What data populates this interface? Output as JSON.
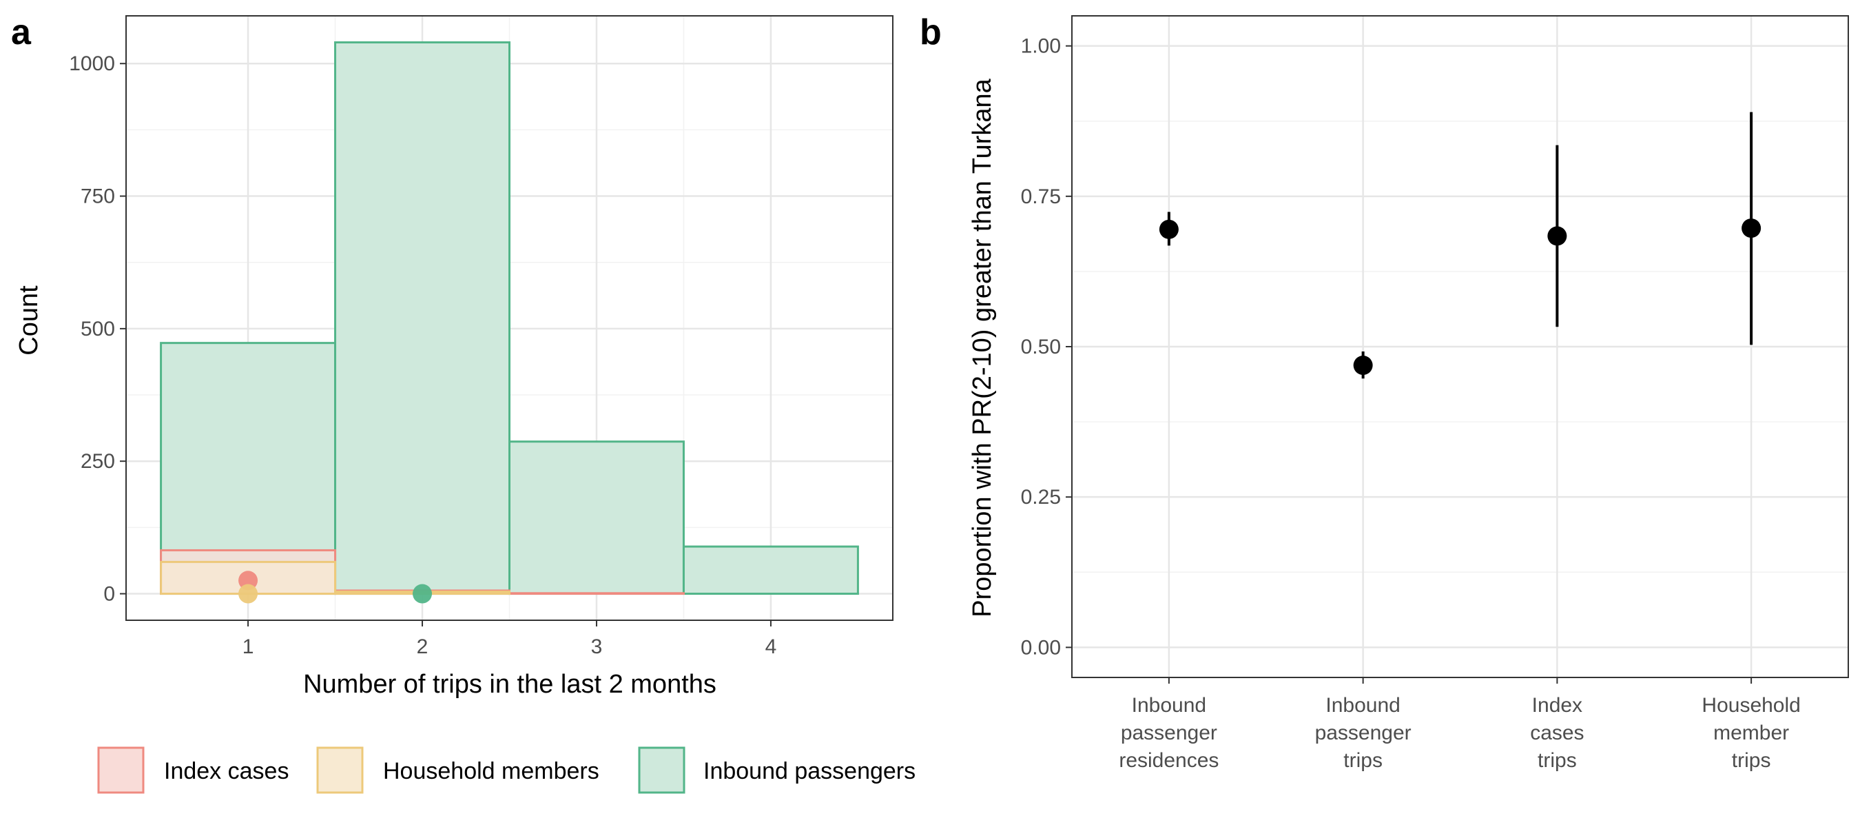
{
  "chart_data": [
    {
      "panel": "a",
      "type": "bar",
      "xlabel": "Number of trips in the last 2 months",
      "ylabel": "Count",
      "x_ticks": [
        1,
        2,
        3,
        4
      ],
      "y_ticks": [
        0,
        250,
        500,
        750,
        1000
      ],
      "xlim": [
        0.3,
        4.7
      ],
      "ylim": [
        -50,
        1090
      ],
      "grid": true,
      "legend_position": "bottom",
      "series": [
        {
          "name": "Index cases",
          "color": "#ef8a80",
          "fill": "#f9dcd8",
          "values": [
            {
              "x": 1,
              "y": 82
            },
            {
              "x": 2,
              "y": 6
            },
            {
              "x": 3,
              "y": 1
            },
            {
              "x": 4,
              "y": 0
            }
          ],
          "point": {
            "x": 1,
            "y": 25
          }
        },
        {
          "name": "Household members",
          "color": "#edc97a",
          "fill": "#f8ead2",
          "values": [
            {
              "x": 1,
              "y": 60
            },
            {
              "x": 2,
              "y": 4
            },
            {
              "x": 3,
              "y": 0
            },
            {
              "x": 4,
              "y": 0
            }
          ],
          "point": {
            "x": 1,
            "y": 0
          }
        },
        {
          "name": "Inbound passengers",
          "color": "#52b589",
          "fill": "#cfe9dc",
          "values": [
            {
              "x": 1,
              "y": 473
            },
            {
              "x": 2,
              "y": 1040
            },
            {
              "x": 3,
              "y": 287
            },
            {
              "x": 4,
              "y": 89
            }
          ],
          "point": {
            "x": 2,
            "y": 0
          }
        }
      ]
    },
    {
      "panel": "b",
      "type": "scatter",
      "ylabel": "Proportion with PR(2-10) greater than Turkana",
      "y_ticks": [
        "0.00",
        "0.25",
        "0.50",
        "0.75",
        "1.00"
      ],
      "ylim": [
        -0.05,
        1.05
      ],
      "grid": true,
      "categories": [
        {
          "lines": [
            "Inbound",
            "passenger",
            "residences"
          ],
          "value": 0.695,
          "lower": 0.668,
          "upper": 0.724
        },
        {
          "lines": [
            "Inbound",
            "passenger",
            "trips"
          ],
          "value": 0.469,
          "lower": 0.447,
          "upper": 0.492
        },
        {
          "lines": [
            "Index",
            "cases",
            "trips"
          ],
          "value": 0.684,
          "lower": 0.533,
          "upper": 0.835
        },
        {
          "lines": [
            "Household",
            "member",
            "trips"
          ],
          "value": 0.697,
          "lower": 0.503,
          "upper": 0.89
        }
      ]
    }
  ]
}
